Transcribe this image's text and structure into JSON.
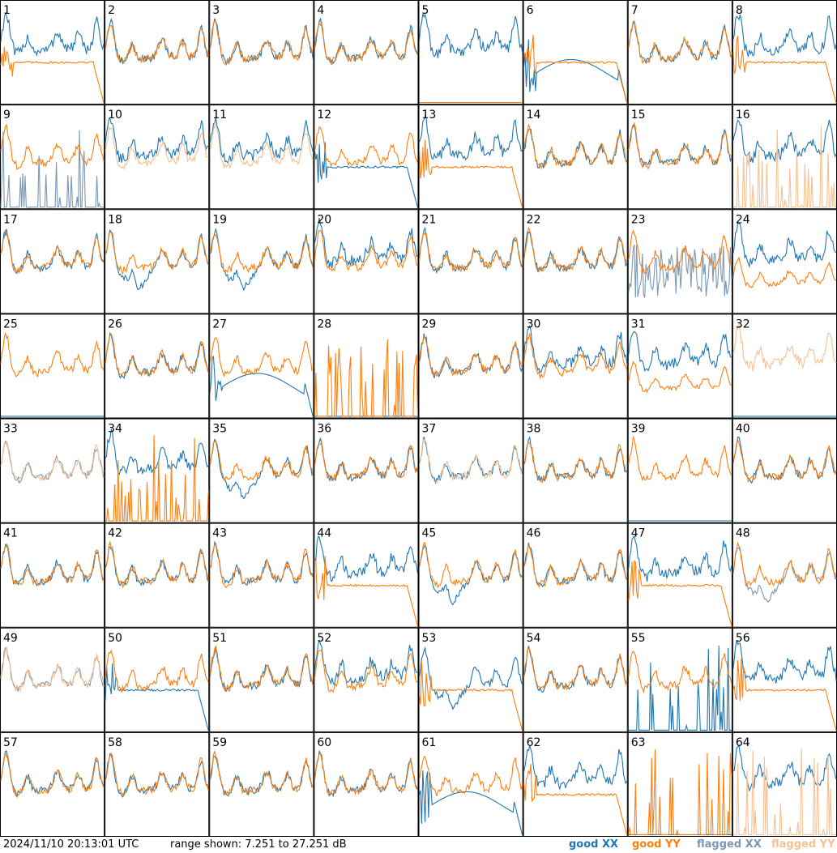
{
  "chart_data": {
    "type": "line",
    "layout": "small-multiples 8x8",
    "timestamp": "2024/11/10 20:13:01 UTC",
    "range_text": "range shown: 7.251 to 27.251 dB",
    "ylim": [
      7.251,
      27.251
    ],
    "legend": [
      {
        "label": "good XX",
        "color": "#1f77b4"
      },
      {
        "label": "good YY",
        "color": "#ff7f0e"
      },
      {
        "label": "flagged XX",
        "color": "#7a98b4"
      },
      {
        "label": "flagged YY",
        "color": "#f6c193"
      }
    ],
    "colors": {
      "good_xx": "#1f77b4",
      "good_yy": "#ff7f0e",
      "flagged_xx": "#7a98b4",
      "flagged_yy": "#f6c193"
    },
    "panels": [
      {
        "id": "1",
        "xx": "good:hi",
        "yy": "good:drop"
      },
      {
        "id": "2",
        "xx": "good:normal",
        "yy": "good:normal"
      },
      {
        "id": "3",
        "xx": "good:normal",
        "yy": "good:normal"
      },
      {
        "id": "4",
        "xx": "good:normal",
        "yy": "good:normal"
      },
      {
        "id": "5",
        "xx": "good:hi",
        "yy": "good:flat"
      },
      {
        "id": "6",
        "xx": "good:wave",
        "yy": "good:drop"
      },
      {
        "id": "7",
        "xx": "good:normal",
        "yy": "good:normal"
      },
      {
        "id": "8",
        "xx": "good:hi",
        "yy": "good:drop"
      },
      {
        "id": "9",
        "xx": "flagged:spikes",
        "yy": "good:normal"
      },
      {
        "id": "10",
        "xx": "good:hi",
        "yy": "flagged:normal"
      },
      {
        "id": "11",
        "xx": "good:hi",
        "yy": "flagged:normal"
      },
      {
        "id": "12",
        "xx": "good:drop",
        "yy": "good:normal"
      },
      {
        "id": "13",
        "xx": "good:hi",
        "yy": "good:drop"
      },
      {
        "id": "14",
        "xx": "good:normal",
        "yy": "good:normal"
      },
      {
        "id": "15",
        "xx": "good:normal",
        "yy": "good:normal"
      },
      {
        "id": "16",
        "xx": "good:hi",
        "yy": "flagged:spikes"
      },
      {
        "id": "17",
        "xx": "good:normal",
        "yy": "good:normal"
      },
      {
        "id": "18",
        "xx": "good:dip",
        "yy": "good:normal"
      },
      {
        "id": "19",
        "xx": "good:dip",
        "yy": "good:normal"
      },
      {
        "id": "20",
        "xx": "good:hi",
        "yy": "good:normal"
      },
      {
        "id": "21",
        "xx": "good:normal",
        "yy": "good:normal"
      },
      {
        "id": "22",
        "xx": "good:normal",
        "yy": "good:normal"
      },
      {
        "id": "23",
        "xx": "flagged:noisy",
        "yy": "good:normal"
      },
      {
        "id": "24",
        "xx": "good:hi",
        "yy": "good:low"
      },
      {
        "id": "25",
        "xx": "good:flat",
        "yy": "good:normal"
      },
      {
        "id": "26",
        "xx": "good:normal",
        "yy": "good:normal"
      },
      {
        "id": "27",
        "xx": "good:wave",
        "yy": "good:normal"
      },
      {
        "id": "28",
        "xx": "good:flat",
        "yy": "good:spikes"
      },
      {
        "id": "29",
        "xx": "good:normal",
        "yy": "good:normal"
      },
      {
        "id": "30",
        "xx": "good:hi",
        "yy": "good:normal"
      },
      {
        "id": "31",
        "xx": "good:hi",
        "yy": "good:low"
      },
      {
        "id": "32",
        "xx": "good:flat",
        "yy": "flagged:hi"
      },
      {
        "id": "33",
        "xx": "flagged:normal",
        "yy": "flagged:normal"
      },
      {
        "id": "34",
        "xx": "good:hi",
        "yy": "good:spikes"
      },
      {
        "id": "35",
        "xx": "good:dip",
        "yy": "good:normal"
      },
      {
        "id": "36",
        "xx": "good:normal",
        "yy": "good:normal"
      },
      {
        "id": "37",
        "xx": "good:normal",
        "yy": "flagged:normal"
      },
      {
        "id": "38",
        "xx": "good:normal",
        "yy": "good:normal"
      },
      {
        "id": "39",
        "xx": "good:flat",
        "yy": "good:normal"
      },
      {
        "id": "40",
        "xx": "good:normal",
        "yy": "good:normal"
      },
      {
        "id": "41",
        "xx": "good:normal",
        "yy": "good:normal"
      },
      {
        "id": "42",
        "xx": "good:normal",
        "yy": "good:normal"
      },
      {
        "id": "43",
        "xx": "good:normal",
        "yy": "good:normal"
      },
      {
        "id": "44",
        "xx": "good:hi",
        "yy": "good:drop"
      },
      {
        "id": "45",
        "xx": "good:dip",
        "yy": "good:normal"
      },
      {
        "id": "46",
        "xx": "good:normal",
        "yy": "good:normal"
      },
      {
        "id": "47",
        "xx": "good:hi",
        "yy": "good:drop"
      },
      {
        "id": "48",
        "xx": "flagged:dip",
        "yy": "good:normal"
      },
      {
        "id": "49",
        "xx": "flagged:normal",
        "yy": "flagged:normal"
      },
      {
        "id": "50",
        "xx": "good:drop",
        "yy": "good:normal"
      },
      {
        "id": "51",
        "xx": "good:normal",
        "yy": "good:normal"
      },
      {
        "id": "52",
        "xx": "good:hi",
        "yy": "good:normal"
      },
      {
        "id": "53",
        "xx": "good:dip",
        "yy": "good:drop"
      },
      {
        "id": "54",
        "xx": "good:normal",
        "yy": "good:normal"
      },
      {
        "id": "55",
        "xx": "good:spikes",
        "yy": "good:normal"
      },
      {
        "id": "56",
        "xx": "good:hi",
        "yy": "good:drop"
      },
      {
        "id": "57",
        "xx": "good:normal",
        "yy": "good:normal"
      },
      {
        "id": "58",
        "xx": "good:normal",
        "yy": "good:normal"
      },
      {
        "id": "59",
        "xx": "good:normal",
        "yy": "good:normal"
      },
      {
        "id": "60",
        "xx": "good:normal",
        "yy": "good:normal"
      },
      {
        "id": "61",
        "xx": "good:wave",
        "yy": "good:normal"
      },
      {
        "id": "62",
        "xx": "good:hi",
        "yy": "good:drop"
      },
      {
        "id": "63",
        "xx": "good:flat",
        "yy": "good:spikes"
      },
      {
        "id": "64",
        "xx": "good:hi",
        "yy": "flagged:spikes"
      }
    ]
  }
}
